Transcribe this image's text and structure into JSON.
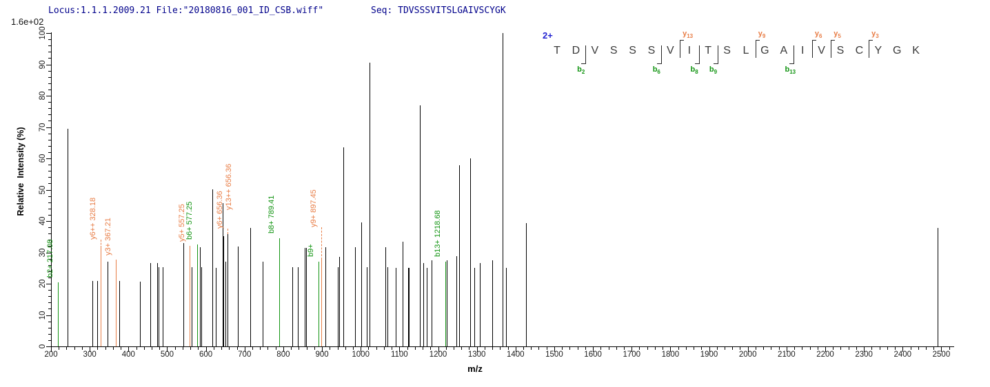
{
  "header": {
    "locus_file": "Locus:1.1.1.2009.21 File:\"20180816_001_ID_CSB.wiff\"",
    "seq_line": "Seq: TDVSSSVITSLGAIVSCYGK"
  },
  "peptide": {
    "charge": "2+",
    "residues": [
      "T",
      "D",
      "V",
      "S",
      "S",
      "S",
      "V",
      "I",
      "T",
      "S",
      "L",
      "G",
      "A",
      "I",
      "V",
      "S",
      "C",
      "Y",
      "G",
      "K"
    ],
    "b_ions": [
      {
        "ion": "b",
        "num": "2",
        "boundary_after": 2
      },
      {
        "ion": "b",
        "num": "6",
        "boundary_after": 6
      },
      {
        "ion": "b",
        "num": "8",
        "boundary_after": 8
      },
      {
        "ion": "b",
        "num": "9",
        "boundary_after": 9
      },
      {
        "ion": "b",
        "num": "13",
        "boundary_after": 13
      }
    ],
    "y_ions": [
      {
        "ion": "y",
        "num": "13",
        "boundary_after": 7
      },
      {
        "ion": "y",
        "num": "9",
        "boundary_after": 11
      },
      {
        "ion": "y",
        "num": "6",
        "boundary_after": 14
      },
      {
        "ion": "y",
        "num": "5",
        "boundary_after": 15
      },
      {
        "ion": "y",
        "num": "3",
        "boundary_after": 17
      }
    ]
  },
  "colors": {
    "header_text": "#00008b",
    "charge_blue": "#2323d1",
    "b_ion_green": "#129412",
    "y_ion_orange": "#e87d46",
    "peak_black": "#000000",
    "residue_gray": "#3a3a3a"
  },
  "chart_data": {
    "type": "bar",
    "subtype": "ms2-fragment-stick-spectrum",
    "title": "",
    "xlabel": "m/z",
    "ylabel": "Relative  Intensity (%)",
    "intensity_scale_label": "1.6e+02",
    "x_range": [
      200,
      2530
    ],
    "y_range": [
      0,
      100
    ],
    "x_major_tick_step": 100,
    "x_minor_tick_step": 20,
    "y_major_tick_step": 10,
    "y_minor_tick_step": 2,
    "x_tick_labels": [
      200,
      300,
      400,
      500,
      600,
      700,
      800,
      900,
      1000,
      1100,
      1200,
      1300,
      1400,
      1500,
      1600,
      1700,
      1800,
      1900,
      2000,
      2100,
      2200,
      2300,
      2400,
      2500
    ],
    "y_tick_labels": [
      0,
      10,
      20,
      30,
      40,
      50,
      60,
      70,
      80,
      90,
      100
    ],
    "grid": false,
    "legend": "none",
    "peaks": [
      {
        "mz": 217.08,
        "intensity": 20.4,
        "color": "g"
      },
      {
        "mz": 242,
        "intensity": 69.5,
        "color": "k"
      },
      {
        "mz": 306,
        "intensity": 20.8,
        "color": "k"
      },
      {
        "mz": 319,
        "intensity": 20.8,
        "color": "k"
      },
      {
        "mz": 328.18,
        "intensity": 31.4,
        "color": "o"
      },
      {
        "mz": 346,
        "intensity": 27.0,
        "color": "k"
      },
      {
        "mz": 367.21,
        "intensity": 27.6,
        "color": "o"
      },
      {
        "mz": 377,
        "intensity": 20.8,
        "color": "k"
      },
      {
        "mz": 430,
        "intensity": 20.7,
        "color": "k"
      },
      {
        "mz": 457,
        "intensity": 26.7,
        "color": "k"
      },
      {
        "mz": 475,
        "intensity": 26.7,
        "color": "k"
      },
      {
        "mz": 478,
        "intensity": 25.2,
        "color": "k"
      },
      {
        "mz": 488,
        "intensity": 25.2,
        "color": "k"
      },
      {
        "mz": 542,
        "intensity": 33.0,
        "color": "k"
      },
      {
        "mz": 557.25,
        "intensity": 32.0,
        "color": "o"
      },
      {
        "mz": 564,
        "intensity": 25.2,
        "color": "k"
      },
      {
        "mz": 577.25,
        "intensity": 32.5,
        "color": "g"
      },
      {
        "mz": 585,
        "intensity": 31.6,
        "color": "k"
      },
      {
        "mz": 589,
        "intensity": 25.3,
        "color": "k"
      },
      {
        "mz": 616,
        "intensity": 50.1,
        "color": "k"
      },
      {
        "mz": 626,
        "intensity": 25.0,
        "color": "k"
      },
      {
        "mz": 643,
        "intensity": 45.7,
        "color": "k"
      },
      {
        "mz": 646,
        "intensity": 35.2,
        "color": "k"
      },
      {
        "mz": 651,
        "intensity": 27.0,
        "color": "k"
      },
      {
        "mz": 656.36,
        "intensity": 35.8,
        "color": "k"
      },
      {
        "mz": 683,
        "intensity": 31.8,
        "color": "k"
      },
      {
        "mz": 715,
        "intensity": 37.7,
        "color": "k"
      },
      {
        "mz": 746,
        "intensity": 27.0,
        "color": "k"
      },
      {
        "mz": 789.41,
        "intensity": 34.5,
        "color": "g"
      },
      {
        "mz": 823,
        "intensity": 25.3,
        "color": "k"
      },
      {
        "mz": 838,
        "intensity": 25.2,
        "color": "k"
      },
      {
        "mz": 856,
        "intensity": 31.4,
        "color": "k"
      },
      {
        "mz": 859,
        "intensity": 31.4,
        "color": "k"
      },
      {
        "mz": 890.5,
        "intensity": 27.1,
        "color": "g"
      },
      {
        "mz": 897.45,
        "intensity": 27.6,
        "color": "o"
      },
      {
        "mz": 909,
        "intensity": 31.6,
        "color": "k"
      },
      {
        "mz": 940,
        "intensity": 25.2,
        "color": "k"
      },
      {
        "mz": 944,
        "intensity": 28.6,
        "color": "k"
      },
      {
        "mz": 955,
        "intensity": 63.5,
        "color": "k"
      },
      {
        "mz": 986,
        "intensity": 31.6,
        "color": "k"
      },
      {
        "mz": 1002,
        "intensity": 39.5,
        "color": "k"
      },
      {
        "mz": 1016,
        "intensity": 25.3,
        "color": "k"
      },
      {
        "mz": 1022,
        "intensity": 90.5,
        "color": "k"
      },
      {
        "mz": 1064,
        "intensity": 31.7,
        "color": "k"
      },
      {
        "mz": 1069,
        "intensity": 25.2,
        "color": "k"
      },
      {
        "mz": 1090,
        "intensity": 25.0,
        "color": "k"
      },
      {
        "mz": 1108,
        "intensity": 33.3,
        "color": "k"
      },
      {
        "mz": 1122,
        "intensity": 25.1,
        "color": "k"
      },
      {
        "mz": 1125,
        "intensity": 25.1,
        "color": "k"
      },
      {
        "mz": 1153,
        "intensity": 76.9,
        "color": "k"
      },
      {
        "mz": 1162,
        "intensity": 26.7,
        "color": "k"
      },
      {
        "mz": 1170,
        "intensity": 25.0,
        "color": "k"
      },
      {
        "mz": 1183,
        "intensity": 27.4,
        "color": "k"
      },
      {
        "mz": 1218.68,
        "intensity": 27.0,
        "color": "g"
      },
      {
        "mz": 1223,
        "intensity": 27.4,
        "color": "k"
      },
      {
        "mz": 1247,
        "intensity": 28.9,
        "color": "k"
      },
      {
        "mz": 1254,
        "intensity": 57.8,
        "color": "k"
      },
      {
        "mz": 1282,
        "intensity": 60.0,
        "color": "k"
      },
      {
        "mz": 1294,
        "intensity": 25.1,
        "color": "k"
      },
      {
        "mz": 1308,
        "intensity": 26.7,
        "color": "k"
      },
      {
        "mz": 1339,
        "intensity": 27.4,
        "color": "k"
      },
      {
        "mz": 1366,
        "intensity": 100.0,
        "color": "k"
      },
      {
        "mz": 1375,
        "intensity": 25.0,
        "color": "k"
      },
      {
        "mz": 1427,
        "intensity": 39.3,
        "color": "k"
      },
      {
        "mz": 2490,
        "intensity": 37.7,
        "color": "k"
      }
    ],
    "annotations": [
      {
        "text": "b2+ 217.08",
        "mz": 217.08,
        "dx": 0,
        "bottom_pct": 22,
        "color": "g",
        "leader_from_pct": null
      },
      {
        "text": "y6++ 328.18",
        "mz": 328.18,
        "dx": 0,
        "bottom_pct": 34,
        "color": "o",
        "leader_from_pct": 31.4
      },
      {
        "text": "y3+ 367.21",
        "mz": 367.21,
        "dx": 0,
        "bottom_pct": 29,
        "color": "o",
        "leader_from_pct": null
      },
      {
        "text": "y5+ 557.25",
        "mz": 557.25,
        "dx": 0,
        "bottom_pct": 33.5,
        "color": "o",
        "leader_from_pct": null
      },
      {
        "text": "b6+ 577.25",
        "mz": 577.25,
        "dx": 0,
        "bottom_pct": 34,
        "color": "g",
        "leader_from_pct": null
      },
      {
        "text": "y6+ 656.36",
        "mz": 656.36,
        "dx": 0,
        "bottom_pct": 37.5,
        "color": "o",
        "leader_from_pct": 35.8
      },
      {
        "text": "y13++ 656.36",
        "mz": 656.36,
        "dx": 13,
        "bottom_pct": 43.5,
        "color": "o",
        "leader_from_pct": null
      },
      {
        "text": "b8+ 789.41",
        "mz": 789.41,
        "dx": 0,
        "bottom_pct": 36,
        "color": "g",
        "leader_from_pct": null
      },
      {
        "text": "b9+",
        "mz": 890.5,
        "dx": 0,
        "bottom_pct": 28.5,
        "color": "g",
        "leader_from_pct": null
      },
      {
        "text": "y9+ 897.45",
        "mz": 897.45,
        "dx": 0,
        "bottom_pct": 38,
        "color": "o",
        "leader_from_pct": 27.6
      },
      {
        "text": "b13+ 1218.68",
        "mz": 1218.68,
        "dx": 0,
        "bottom_pct": 28.5,
        "color": "g",
        "leader_from_pct": null
      }
    ]
  }
}
